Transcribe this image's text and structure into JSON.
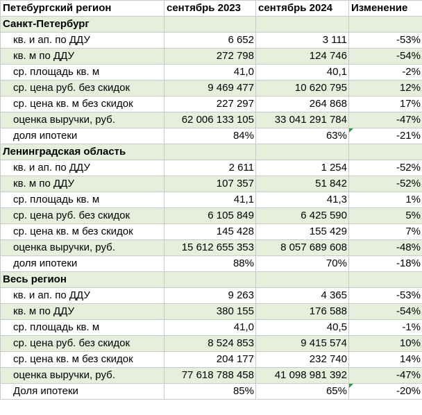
{
  "header": {
    "region": "Петебургский регион",
    "sep2023": "сентябрь 2023",
    "sep2024": "сентябрь 2024",
    "change": "Изменение"
  },
  "sections": [
    {
      "name": "Санкт-Петербург",
      "rows": [
        {
          "label": "кв. и ап. по ДДУ",
          "v2023": "6 652",
          "v2024": "3 111",
          "change": "-53%"
        },
        {
          "label": "кв. м по ДДУ",
          "v2023": "272 798",
          "v2024": "124 746",
          "change": "-54%"
        },
        {
          "label": "ср. площадь кв. м",
          "v2023": "41,0",
          "v2024": "40,1",
          "change": "-2%"
        },
        {
          "label": "ср. цена руб. без скидок",
          "v2023": "9 469 477",
          "v2024": "10 620 795",
          "change": "12%"
        },
        {
          "label": "ср. цена кв. м без скидок",
          "v2023": "227 297",
          "v2024": "264 868",
          "change": "17%"
        },
        {
          "label": "оценка выручки, руб.",
          "v2023": "62 006 133 105",
          "v2024": "33 041 291 784",
          "change": "-47%"
        },
        {
          "label": "доля ипотеки",
          "v2023": "84%",
          "v2024": "63%",
          "change": "-21%"
        }
      ]
    },
    {
      "name": "Ленинградская область",
      "rows": [
        {
          "label": "кв. и ап. по ДДУ",
          "v2023": "2 611",
          "v2024": "1 254",
          "change": "-52%"
        },
        {
          "label": "кв. м по ДДУ",
          "v2023": "107 357",
          "v2024": "51 842",
          "change": "-52%"
        },
        {
          "label": "ср. площадь кв. м",
          "v2023": "41,1",
          "v2024": "41,3",
          "change": "1%"
        },
        {
          "label": "ср. цена руб. без скидок",
          "v2023": "6 105 849",
          "v2024": "6 425 590",
          "change": "5%"
        },
        {
          "label": "ср. цена кв. м без скидок",
          "v2023": "145 428",
          "v2024": "155 429",
          "change": "7%"
        },
        {
          "label": "оценка выручки, руб.",
          "v2023": "15 612 655 353",
          "v2024": "8 057 689 608",
          "change": "-48%"
        },
        {
          "label": "доля ипотеки",
          "v2023": "88%",
          "v2024": "70%",
          "change": "-18%"
        }
      ]
    },
    {
      "name": "Весь регион",
      "rows": [
        {
          "label": "кв. и ап. по ДДУ",
          "v2023": "9 263",
          "v2024": "4 365",
          "change": "-53%"
        },
        {
          "label": "кв. м по ДДУ",
          "v2023": "380 155",
          "v2024": "176 588",
          "change": "-54%"
        },
        {
          "label": "ср. площадь кв. м",
          "v2023": "41,0",
          "v2024": "40,5",
          "change": "-1%"
        },
        {
          "label": "ср. цена руб. без скидок",
          "v2023": "8 524 853",
          "v2024": "9 415 574",
          "change": "10%"
        },
        {
          "label": "ср. цена кв. м без скидок",
          "v2023": "204 177",
          "v2024": "232 740",
          "change": "14%"
        },
        {
          "label": "оценка выручки, руб.",
          "v2023": "77 618 788 458",
          "v2024": "41 098 981 392",
          "change": "-47%"
        },
        {
          "label": "Доля ипотеки",
          "v2023": "85%",
          "v2024": "65%",
          "change": "-20%"
        }
      ]
    }
  ],
  "colors": {
    "band": "#e6efdb",
    "grid": "#c9c9c9",
    "flag": "#2e9b3a"
  }
}
